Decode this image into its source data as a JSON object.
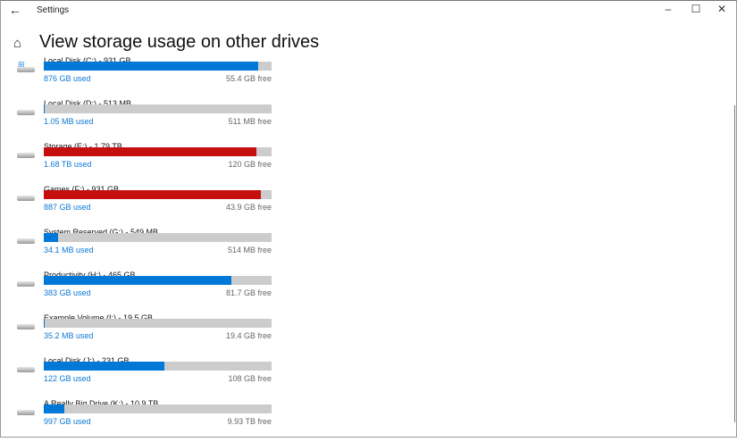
{
  "window": {
    "title": "Settings"
  },
  "page": {
    "heading": "View storage usage on other drives"
  },
  "drives": [
    {
      "name": "Local Disk (C:) - 931 GB",
      "used": "876 GB used",
      "free": "55.4 GB free",
      "fraction": 0.941,
      "color": "#0078d7",
      "system": true
    },
    {
      "name": "Local Disk (D:) - 513 MB",
      "used": "1.05 MB used",
      "free": "511 MB free",
      "fraction": 0.002,
      "color": "#0078d7"
    },
    {
      "name": "Storage (E:) - 1.79 TB",
      "used": "1.68 TB used",
      "free": "120 GB free",
      "fraction": 0.935,
      "color": "#c50f0f"
    },
    {
      "name": "Games (F:) - 931 GB",
      "used": "887 GB used",
      "free": "43.9 GB free",
      "fraction": 0.953,
      "color": "#c50f0f"
    },
    {
      "name": "System Reserved (G:) - 549 MB",
      "used": "34.1 MB used",
      "free": "514 MB free",
      "fraction": 0.062,
      "color": "#0078d7"
    },
    {
      "name": "Productivity (H:) - 465 GB",
      "used": "383 GB used",
      "free": "81.7 GB free",
      "fraction": 0.824,
      "color": "#0078d7"
    },
    {
      "name": "Example Volume (I:) - 19.5 GB",
      "used": "35.2 MB used",
      "free": "19.4 GB free",
      "fraction": 0.002,
      "color": "#0078d7"
    },
    {
      "name": "Local Disk (J:) - 231 GB",
      "used": "122 GB used",
      "free": "108 GB free",
      "fraction": 0.528,
      "color": "#0078d7"
    },
    {
      "name": "A Really Big Drive (K:) - 10.9 TB",
      "used": "997 GB used",
      "free": "9.93 TB free",
      "fraction": 0.089,
      "color": "#0078d7"
    }
  ]
}
